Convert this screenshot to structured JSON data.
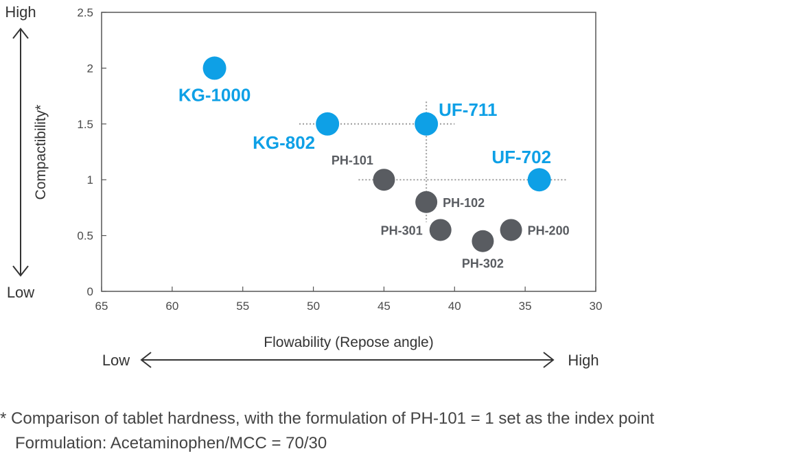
{
  "colors": {
    "highlight": "#0ea0e6",
    "standard": "#595c61",
    "frame": "#555555",
    "guide": "#9a9a9a",
    "arrow": "#333333"
  },
  "chart_data": {
    "type": "scatter",
    "xlabel": "Flowability (Repose angle)",
    "ylabel": "Compactibility*",
    "xlim": [
      65,
      30
    ],
    "ylim": [
      0,
      2.5
    ],
    "x_reversed": true,
    "x_ticks": [
      "65",
      "60",
      "55",
      "50",
      "45",
      "40",
      "35",
      "30"
    ],
    "y_ticks": [
      "0",
      "0.5",
      "1",
      "1.5",
      "2",
      "2.5"
    ],
    "grid": false,
    "y_direction": {
      "high": "High",
      "low": "Low"
    },
    "x_direction": {
      "low": "Low",
      "high": "High"
    },
    "series": [
      {
        "group": "highlight",
        "points": [
          {
            "label": "KG-1000",
            "x": 57,
            "y": 2.0
          },
          {
            "label": "KG-802",
            "x": 49,
            "y": 1.5
          },
          {
            "label": "UF-711",
            "x": 42,
            "y": 1.5
          },
          {
            "label": "UF-702",
            "x": 34,
            "y": 1.0
          }
        ]
      },
      {
        "group": "standard",
        "points": [
          {
            "label": "PH-101",
            "x": 45,
            "y": 1.0
          },
          {
            "label": "PH-102",
            "x": 42,
            "y": 0.8
          },
          {
            "label": "PH-301",
            "x": 41,
            "y": 0.55
          },
          {
            "label": "PH-302",
            "x": 38,
            "y": 0.45
          },
          {
            "label": "PH-200",
            "x": 36,
            "y": 0.55
          }
        ]
      }
    ]
  },
  "footnote": {
    "line1": "* Comparison of tablet hardness, with the formulation of PH-101 = 1 set as the index point",
    "line2": "Formulation: Acetaminophen/MCC = 70/30"
  }
}
